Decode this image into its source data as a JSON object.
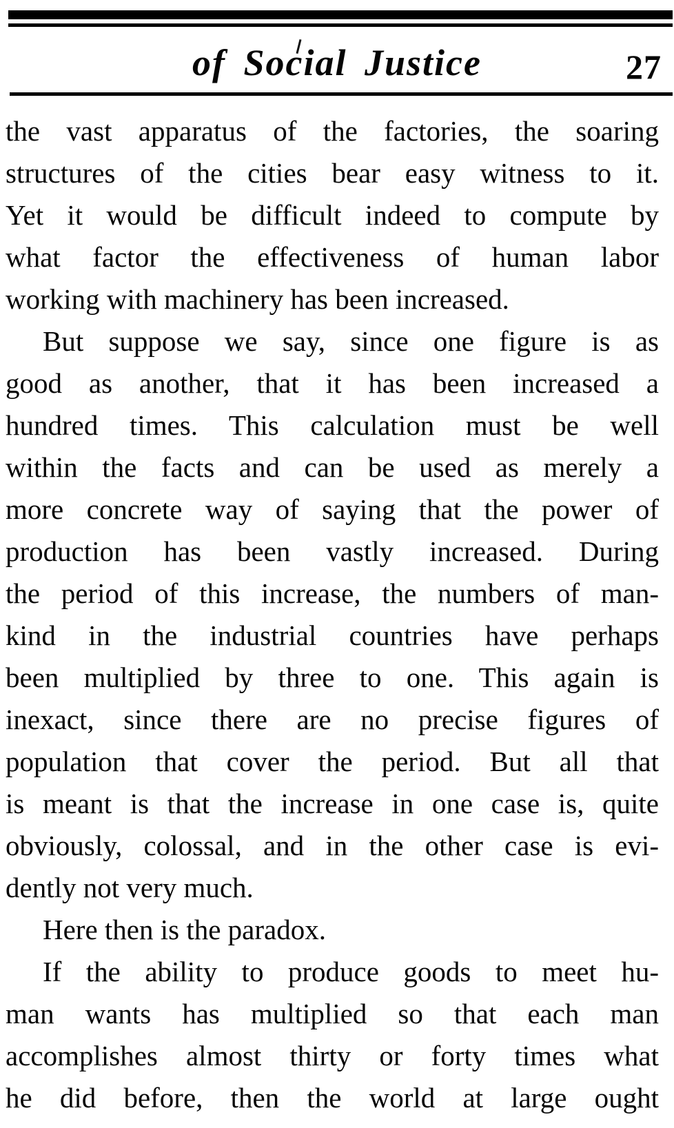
{
  "colors": {
    "ink": "#050505",
    "paper": "#ffffff"
  },
  "header": {
    "title": "of Social Justice",
    "page_number": "27"
  },
  "content": {
    "lines": [
      "the vast apparatus of the factories, the soaring",
      "structures of the cities bear easy witness to it.",
      "Yet it would be difficult indeed to compute by",
      "what factor the effectiveness of human labor",
      "working with machinery has been increased.",
      "But suppose we say, since one figure is as",
      "good as another, that it has been increased a",
      "hundred times.  This calculation must be well",
      "within the facts and can be used as merely a",
      "more concrete way of saying that the power of",
      "production has been vastly increased.  During",
      "the period of this increase, the numbers of man-",
      "kind in the industrial countries have perhaps",
      "been multiplied by three to one.  This again is",
      "inexact, since there are no precise figures of",
      "population that cover the period.  But all that",
      "is meant is that the increase in one case is, quite",
      "obviously, colossal, and in the other case is evi-",
      "dently not very much.",
      "Here then is the paradox.",
      "If the ability to produce goods to meet hu-",
      "man wants has multiplied so that each man",
      "accomplishes almost thirty or forty times what",
      "he did before, then the world at large ought"
    ]
  }
}
